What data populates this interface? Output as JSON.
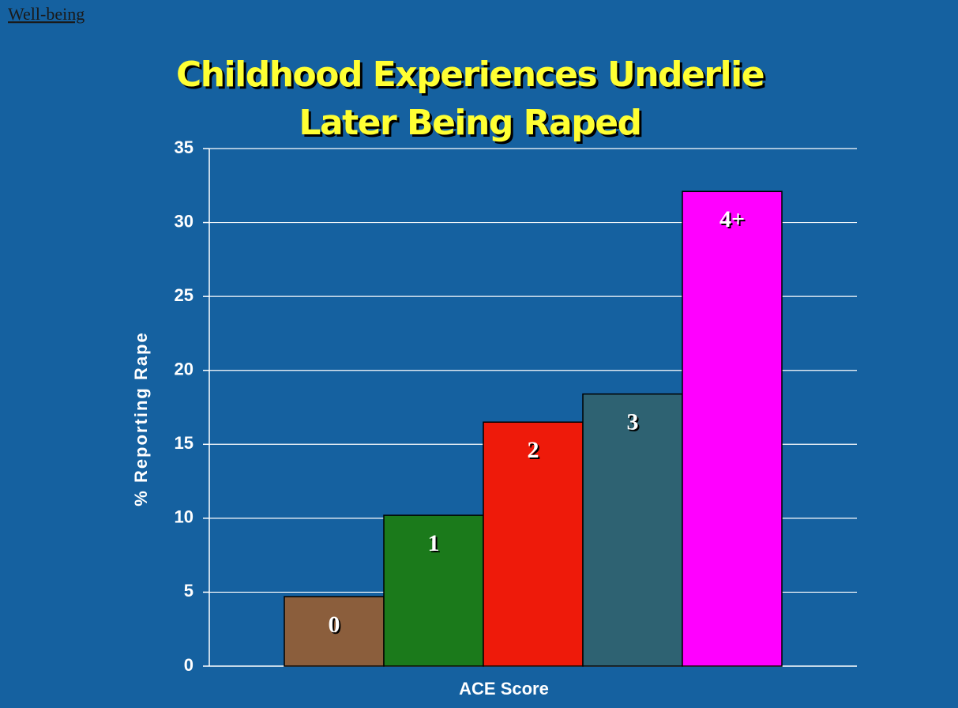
{
  "header": "Well-being",
  "chart_data": {
    "type": "bar",
    "title_lines": [
      "Childhood Experiences Underlie",
      "Later Being Raped"
    ],
    "ylabel": "% Reporting Rape",
    "xlabel": "ACE Score",
    "categories": [
      "0",
      "1",
      "2",
      "3",
      "4+"
    ],
    "values": [
      4.7,
      10.2,
      16.5,
      18.4,
      32.1
    ],
    "colors": [
      "#8b5e3c",
      "#1b7a1b",
      "#ee1a0a",
      "#2e6272",
      "#ff00ff"
    ],
    "ylim": [
      0,
      35
    ],
    "yticks": [
      0,
      5,
      10,
      15,
      20,
      25,
      30,
      35
    ],
    "grid": true
  }
}
